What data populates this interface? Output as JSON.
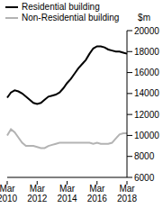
{
  "chart_data": {
    "type": "line",
    "y_label": "$m",
    "categories": [
      "Mar 2010",
      null,
      null,
      null,
      null,
      null,
      null,
      null,
      "Mar 2012",
      null,
      null,
      null,
      null,
      null,
      null,
      null,
      "Mar 2014",
      null,
      null,
      null,
      null,
      null,
      null,
      null,
      "Mar 2016",
      null,
      null,
      null,
      null,
      null,
      null,
      null,
      "Mar 2018"
    ],
    "series": [
      {
        "name": "Residential building",
        "color": "#000000",
        "values": [
          13600,
          14100,
          14300,
          14200,
          14000,
          13700,
          13400,
          13100,
          13000,
          13100,
          13400,
          13700,
          13800,
          13900,
          14100,
          14500,
          15000,
          15400,
          15900,
          16400,
          16800,
          17200,
          17800,
          18300,
          18500,
          18500,
          18400,
          18200,
          18100,
          18000,
          18000,
          17900,
          17800
        ]
      },
      {
        "name": "Non-Residential building",
        "color": "#b3b3b3",
        "values": [
          10000,
          10600,
          10300,
          9800,
          9300,
          9000,
          9000,
          9000,
          8900,
          8800,
          8800,
          9000,
          9100,
          9200,
          9300,
          9300,
          9300,
          9300,
          9300,
          9300,
          9300,
          9300,
          9300,
          9200,
          9300,
          9200,
          9200,
          9200,
          9300,
          9700,
          10100,
          10200,
          10200
        ]
      }
    ],
    "ylim": [
      6000,
      20000
    ],
    "yticks": [
      6000,
      8000,
      10000,
      12000,
      14000,
      16000,
      18000,
      20000
    ],
    "grid": false
  }
}
